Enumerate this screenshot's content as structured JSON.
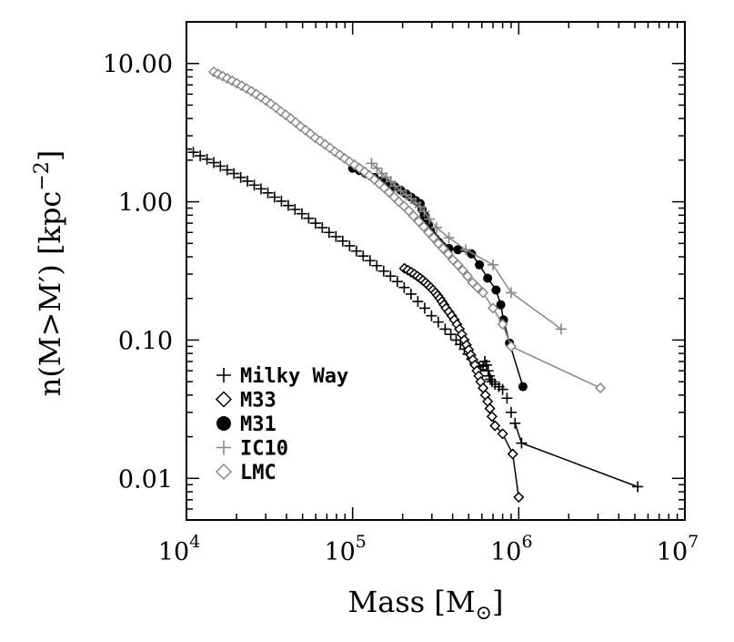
{
  "chart_data": {
    "type": "scatter",
    "title": "",
    "xlabel": "Mass [M",
    "xlabel_symbol": "⊙",
    "xlabel_close": "]",
    "ylabel_main": "n(M>M′) [kpc",
    "ylabel_exp": "−2",
    "ylabel_close": "]",
    "xscale": "log",
    "yscale": "log",
    "xlim": [
      10000,
      10000000
    ],
    "ylim": [
      0.005,
      20
    ],
    "x_ticks": [
      {
        "value": 10000,
        "base": "10",
        "exp": "4"
      },
      {
        "value": 100000,
        "base": "10",
        "exp": "5"
      },
      {
        "value": 1000000,
        "base": "10",
        "exp": "6"
      },
      {
        "value": 10000000,
        "base": "10",
        "exp": "7"
      }
    ],
    "y_ticks": [
      {
        "value": 0.01,
        "label": "0.01"
      },
      {
        "value": 0.1,
        "label": "0.10"
      },
      {
        "value": 1,
        "label": "1.00"
      },
      {
        "value": 10,
        "label": "10.00"
      }
    ],
    "legend_position": "bottom-left",
    "series": [
      {
        "name": "Milky Way",
        "marker": "plus",
        "color": "#000000",
        "line_from_index": 60,
        "x": [
          10000,
          11000,
          12100,
          13300,
          14600,
          16000,
          17600,
          19300,
          21200,
          23300,
          25600,
          28100,
          30900,
          33900,
          37300,
          41000,
          45000,
          49500,
          54400,
          59800,
          65700,
          72200,
          79400,
          87200,
          95900,
          105400,
          115800,
          127300,
          139900,
          153800,
          169100,
          185900,
          204400,
          224700,
          247000,
          271500,
          298500,
          328000,
          360500,
          390000,
          420000,
          445000,
          470000,
          495000,
          520000,
          545000,
          570000,
          590000,
          610000,
          625000,
          640000,
          655000,
          665000,
          675000,
          690000,
          720000,
          760000,
          800000,
          850000,
          900000,
          950000,
          1040000,
          5200000
        ],
        "y": [
          2.4,
          2.28,
          2.15,
          2.03,
          1.92,
          1.81,
          1.7,
          1.6,
          1.5,
          1.41,
          1.32,
          1.24,
          1.16,
          1.08,
          1.01,
          0.94,
          0.88,
          0.82,
          0.76,
          0.7,
          0.65,
          0.6,
          0.56,
          0.52,
          0.48,
          0.44,
          0.405,
          0.375,
          0.345,
          0.315,
          0.29,
          0.265,
          0.24,
          0.215,
          0.19,
          0.17,
          0.15,
          0.135,
          0.12,
          0.11,
          0.1,
          0.093,
          0.086,
          0.079,
          0.073,
          0.068,
          0.064,
          0.061,
          0.065,
          0.07,
          0.066,
          0.06,
          0.055,
          0.052,
          0.05,
          0.048,
          0.046,
          0.044,
          0.038,
          0.03,
          0.025,
          0.018,
          0.0087
        ]
      },
      {
        "name": "M33",
        "marker": "diamond",
        "color": "#000000",
        "x": [
          205000,
          215000,
          225000,
          235000,
          245000,
          255000,
          265000,
          275000,
          285000,
          295000,
          305000,
          315000,
          325000,
          335000,
          345000,
          355000,
          365000,
          380000,
          395000,
          410000,
          425000,
          440000,
          455000,
          470000,
          485000,
          500000,
          515000,
          530000,
          545000,
          560000,
          575000,
          590000,
          610000,
          630000,
          650000,
          670000,
          690000,
          720000,
          800000,
          920000,
          1000000
        ],
        "y": [
          0.33,
          0.32,
          0.31,
          0.3,
          0.29,
          0.28,
          0.27,
          0.26,
          0.25,
          0.24,
          0.23,
          0.22,
          0.21,
          0.2,
          0.19,
          0.18,
          0.17,
          0.16,
          0.15,
          0.14,
          0.13,
          0.12,
          0.11,
          0.1,
          0.092,
          0.085,
          0.078,
          0.072,
          0.066,
          0.06,
          0.055,
          0.05,
          0.045,
          0.04,
          0.036,
          0.032,
          0.028,
          0.024,
          0.021,
          0.015,
          0.0073
        ]
      },
      {
        "name": "M31",
        "marker": "circle",
        "color": "#000000",
        "x": [
          100000,
          110000,
          120000,
          135000,
          150000,
          165000,
          180000,
          195000,
          210000,
          225000,
          240000,
          255000,
          262000,
          270000,
          278000,
          286000,
          294000,
          302000,
          315000,
          330000,
          345000,
          360000,
          380000,
          430000,
          520000,
          580000,
          650000,
          730000,
          780000,
          810000,
          880000,
          1060000
        ],
        "y": [
          1.75,
          1.68,
          1.6,
          1.5,
          1.42,
          1.35,
          1.28,
          1.21,
          1.14,
          1.08,
          1.02,
          0.97,
          0.88,
          0.8,
          0.74,
          0.68,
          0.62,
          0.57,
          0.54,
          0.51,
          0.48,
          0.45,
          0.46,
          0.45,
          0.42,
          0.35,
          0.28,
          0.23,
          0.18,
          0.14,
          0.095,
          0.046
        ]
      },
      {
        "name": "IC10",
        "marker": "plus",
        "color": "#888888",
        "x": [
          130000,
          140000,
          150000,
          160000,
          170000,
          180000,
          195000,
          210000,
          225000,
          240000,
          255000,
          270000,
          290000,
          320000,
          380000,
          480000,
          700000,
          900000,
          1800000
        ],
        "y": [
          1.9,
          1.75,
          1.6,
          1.5,
          1.4,
          1.3,
          1.2,
          1.12,
          1.05,
          0.98,
          0.92,
          0.85,
          0.75,
          0.65,
          0.55,
          0.45,
          0.35,
          0.22,
          0.12
        ]
      },
      {
        "name": "LMC",
        "marker": "diamond",
        "color": "#888888",
        "x": [
          14600,
          15500,
          16500,
          17600,
          18800,
          20100,
          21500,
          23000,
          24600,
          26300,
          28100,
          30100,
          32200,
          34500,
          37000,
          39600,
          42400,
          45400,
          48600,
          52000,
          55700,
          59600,
          63800,
          68300,
          73100,
          78200,
          83700,
          89600,
          95900,
          102700,
          110000,
          118000,
          126000,
          135000,
          145000,
          155000,
          166000,
          178000,
          190000,
          204000,
          218000,
          233000,
          250000,
          268000,
          287000,
          307000,
          328000,
          351000,
          376000,
          402000,
          430000,
          460000,
          492000,
          527000,
          564000,
          610000,
          700000,
          800000,
          900000,
          3100000
        ],
        "y": [
          8.7,
          8.4,
          8.1,
          7.8,
          7.5,
          7.2,
          6.9,
          6.6,
          6.3,
          6.0,
          5.7,
          5.4,
          5.1,
          4.8,
          4.5,
          4.25,
          4.0,
          3.75,
          3.5,
          3.3,
          3.1,
          2.9,
          2.75,
          2.6,
          2.45,
          2.3,
          2.18,
          2.06,
          1.95,
          1.85,
          1.75,
          1.65,
          1.55,
          1.45,
          1.35,
          1.26,
          1.17,
          1.08,
          1.0,
          0.93,
          0.86,
          0.79,
          0.72,
          0.66,
          0.6,
          0.55,
          0.5,
          0.46,
          0.42,
          0.38,
          0.35,
          0.32,
          0.29,
          0.26,
          0.24,
          0.22,
          0.17,
          0.13,
          0.09,
          0.045
        ]
      }
    ]
  }
}
